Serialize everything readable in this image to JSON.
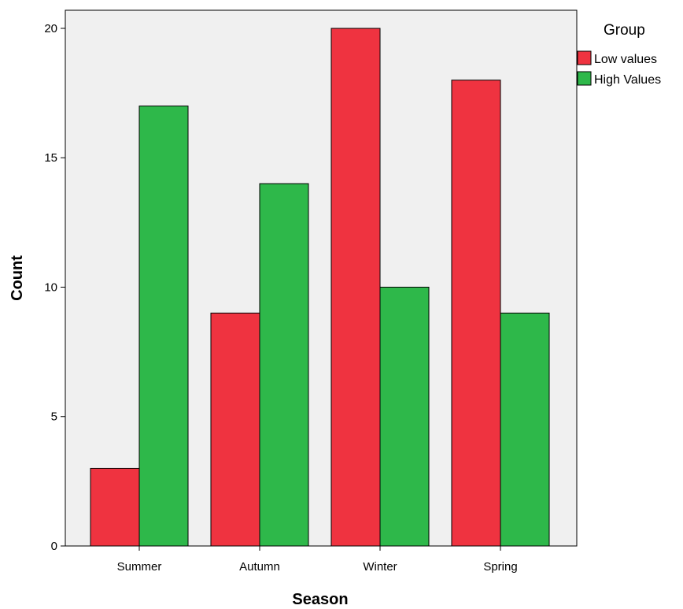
{
  "chart_data": {
    "type": "bar",
    "xlabel": "Season",
    "ylabel": "Count",
    "categories": [
      "Summer",
      "Autumn",
      "Winter",
      "Spring"
    ],
    "series": [
      {
        "name": "Low values",
        "values": [
          3,
          9,
          20,
          18
        ],
        "color": "#ef3340"
      },
      {
        "name": "High Values",
        "values": [
          17,
          14,
          10,
          9
        ],
        "color": "#2eb84a"
      }
    ],
    "ylim": [
      0,
      20.7
    ],
    "yticks": [
      0,
      5,
      10,
      15,
      20
    ],
    "legend": {
      "title": "Group",
      "placement": "right"
    },
    "plot_background": "#f0f0f0",
    "grid": false
  }
}
